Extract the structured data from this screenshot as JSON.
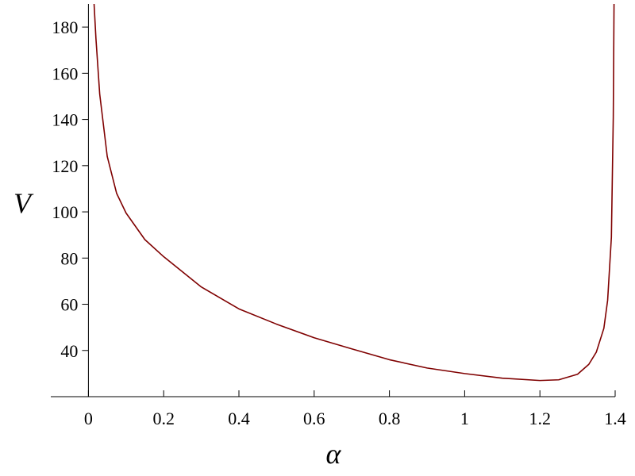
{
  "chart_data": {
    "type": "line",
    "x_label": "α",
    "y_label": "V",
    "x": [
      0.015,
      0.02,
      0.03,
      0.05,
      0.075,
      0.1,
      0.15,
      0.2,
      0.3,
      0.4,
      0.5,
      0.6,
      0.7,
      0.8,
      0.9,
      1.0,
      1.1,
      1.2,
      1.25,
      1.3,
      1.33,
      1.35,
      1.37,
      1.38,
      1.39,
      1.395,
      1.397
    ],
    "series": [
      {
        "color": "#7f0000",
        "values": [
          190,
          175,
          151,
          124,
          108,
          99.5,
          88,
          80.6,
          67.5,
          58,
          51.4,
          45.5,
          40.7,
          36,
          32.4,
          30,
          28,
          27,
          27.3,
          29.7,
          34,
          39.3,
          49.6,
          61.7,
          89,
          141,
          190
        ]
      }
    ],
    "xlim": [
      -0.1,
      1.4
    ],
    "ylim": [
      20,
      190
    ],
    "xticks": [
      0,
      0.2,
      0.4,
      0.6,
      0.8,
      1,
      1.2,
      1.4
    ],
    "yticks": [
      40,
      60,
      80,
      100,
      120,
      140,
      160,
      180
    ]
  }
}
